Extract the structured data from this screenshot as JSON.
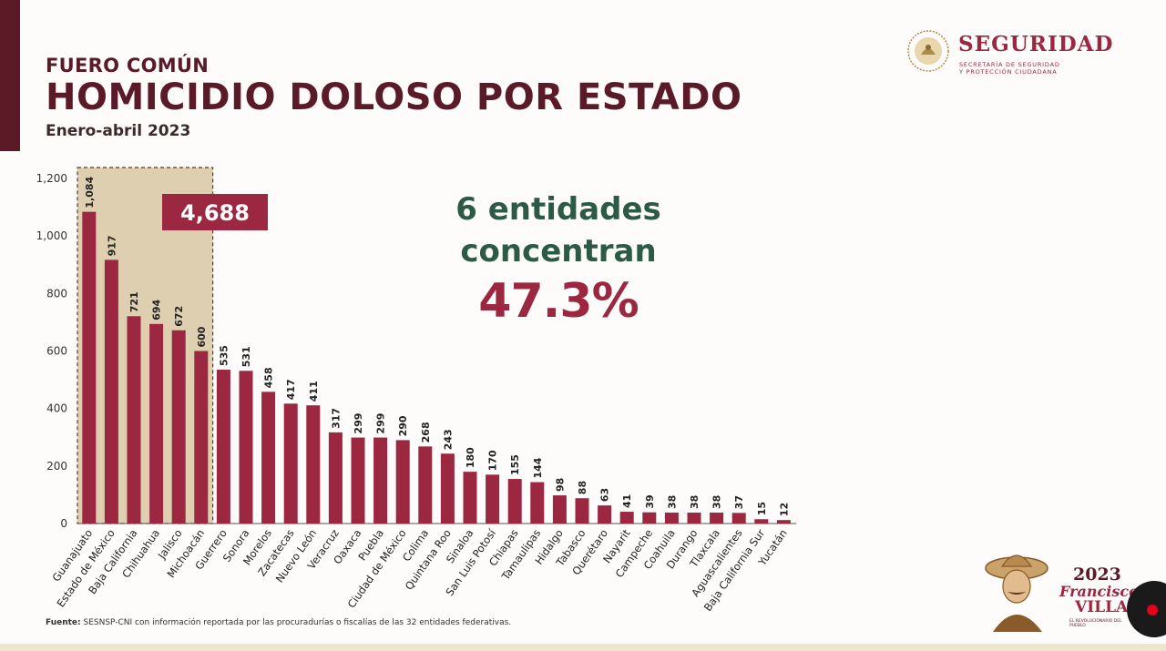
{
  "header": {
    "kicker": "FUERO COMÚN",
    "title": "HOMICIDIO DOLOSO POR ESTADO",
    "subtitle": "Enero-abril 2023"
  },
  "brand": {
    "name": "SEGURIDAD",
    "line1": "SECRETARÍA DE SEGURIDAD",
    "line2": "Y PROTECCIÓN CIUDADANA"
  },
  "callout": {
    "line1": "6 entidades",
    "line2": "concentran",
    "percent": "47.3%"
  },
  "highlight": {
    "total_label": "4,688",
    "count": 6
  },
  "footnote": {
    "label": "Fuente:",
    "text": " SESNSP-CNI con información reportada por las procuradurías o fiscalías de las 32 entidades federativas."
  },
  "anniversary": {
    "year": "2023",
    "name1": "Francisco",
    "name2": "VILLA",
    "tagline": "EL REVOLUCIONARIO DEL PUEBLO"
  },
  "colors": {
    "bar": "#9b2740",
    "highlight_fill": "#d8c7a2",
    "total_box": "#9b2740",
    "title": "#5a1a28",
    "callout_green": "#2d5a47"
  },
  "chart_data": {
    "type": "bar",
    "title": "HOMICIDIO DOLOSO POR ESTADO",
    "xlabel": "",
    "ylabel": "",
    "ylim": [
      0,
      1200
    ],
    "yticks": [
      0,
      200,
      400,
      600,
      800,
      1000,
      1200
    ],
    "ytick_labels": [
      "0",
      "200",
      "400",
      "600",
      "800",
      "1,000",
      "1,200"
    ],
    "grid": false,
    "categories": [
      "Guanajuato",
      "Estado de México",
      "Baja California",
      "Chihuahua",
      "Jalisco",
      "Michoacán",
      "Guerrero",
      "Sonora",
      "Morelos",
      "Zacatecas",
      "Nuevo León",
      "Veracruz",
      "Oaxaca",
      "Puebla",
      "Ciudad de México",
      "Colima",
      "Quintana Roo",
      "Sinaloa",
      "San Luis Potosí",
      "Chiapas",
      "Tamaulipas",
      "Hidalgo",
      "Tabasco",
      "Querétaro",
      "Nayarit",
      "Campeche",
      "Coahuila",
      "Durango",
      "Tlaxcala",
      "Aguascalientes",
      "Baja California Sur",
      "Yucatán"
    ],
    "values": [
      1084,
      917,
      721,
      694,
      672,
      600,
      535,
      531,
      458,
      417,
      411,
      317,
      299,
      299,
      290,
      268,
      243,
      180,
      170,
      155,
      144,
      98,
      88,
      63,
      41,
      39,
      38,
      38,
      38,
      37,
      15,
      12
    ],
    "value_labels": [
      "1,084",
      "917",
      "721",
      "694",
      "672",
      "600",
      "535",
      "531",
      "458",
      "417",
      "411",
      "317",
      "299",
      "299",
      "290",
      "268",
      "243",
      "180",
      "170",
      "155",
      "144",
      "98",
      "88",
      "63",
      "41",
      "39",
      "38",
      "38",
      "38",
      "37",
      "15",
      "12"
    ]
  }
}
